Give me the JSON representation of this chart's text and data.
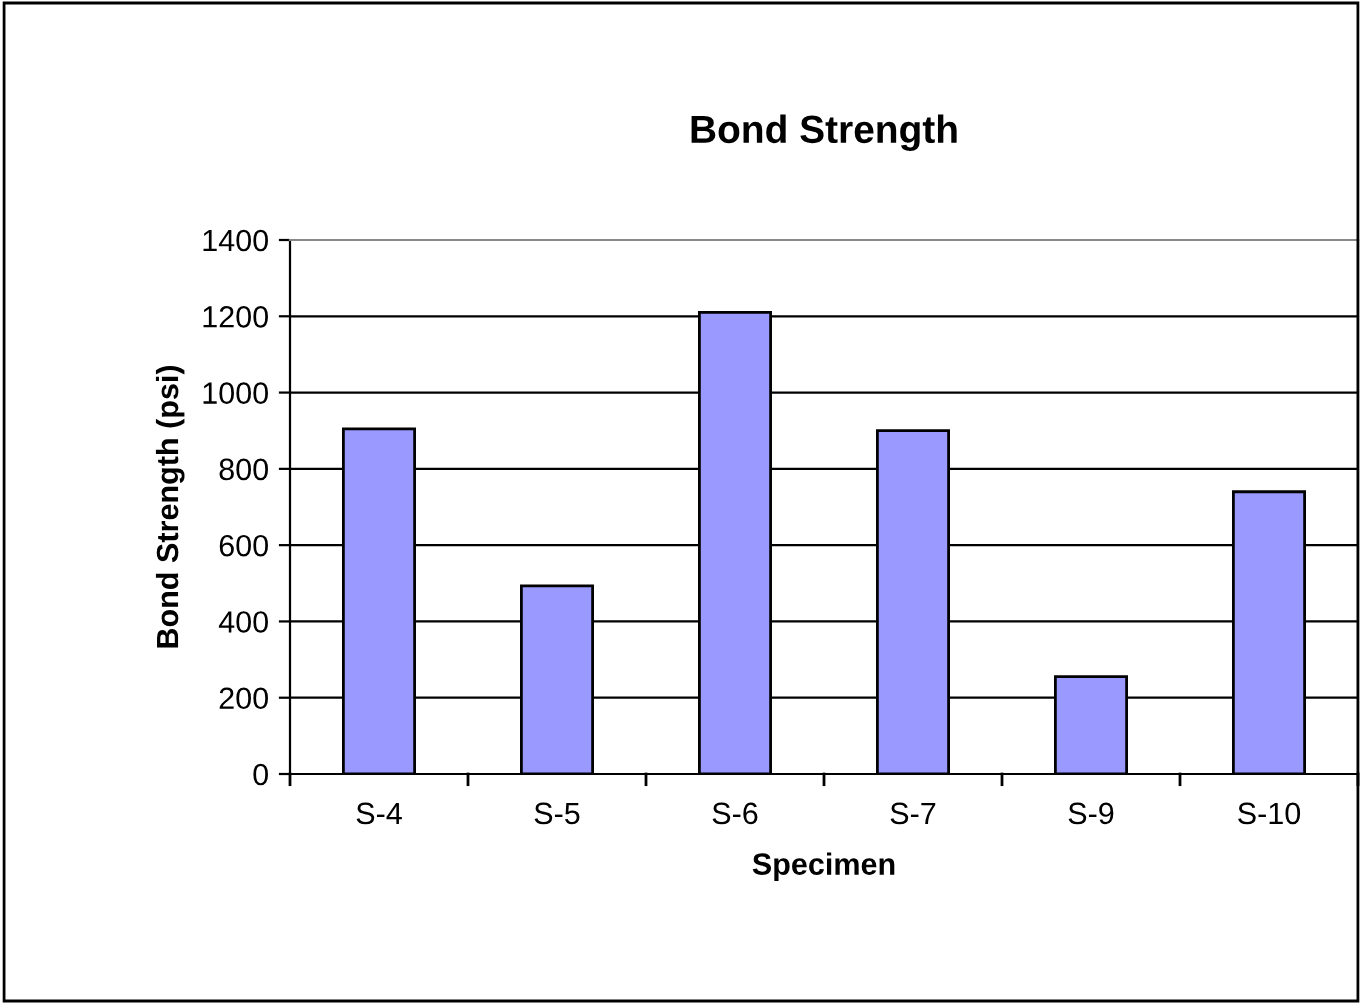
{
  "chart_data": {
    "type": "bar",
    "title": "Bond Strength",
    "xlabel": "Specimen",
    "ylabel": "Bond Strength (psi)",
    "categories": [
      "S-4",
      "S-5",
      "S-6",
      "S-7",
      "S-9",
      "S-10"
    ],
    "values": [
      905,
      493,
      1210,
      900,
      255,
      740
    ],
    "color": "#9999ff",
    "ylim": [
      0,
      1400
    ],
    "yticks": [
      0,
      200,
      400,
      600,
      800,
      1000,
      1200,
      1400
    ],
    "grid": "y",
    "legend": false
  }
}
